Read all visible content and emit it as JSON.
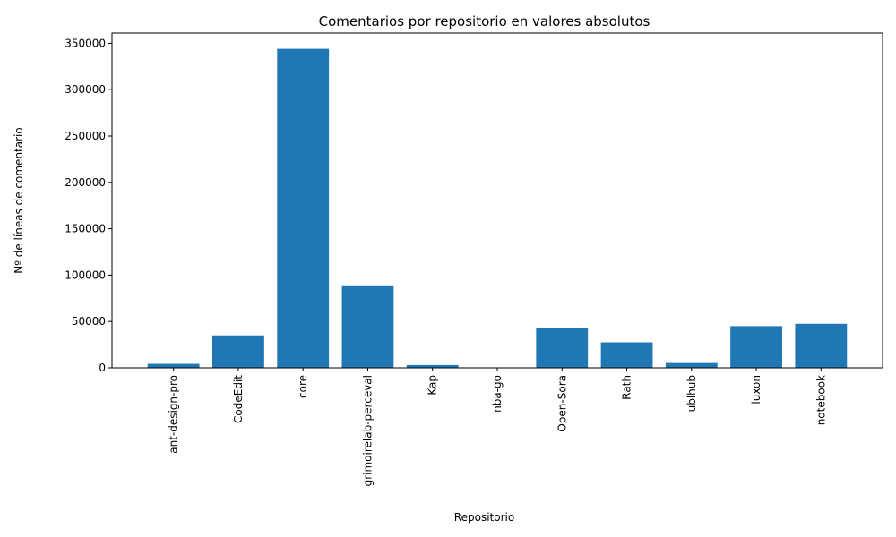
{
  "chart_data": {
    "type": "bar",
    "title": "Comentarios por repositorio en valores absolutos",
    "xlabel": "Repositorio",
    "ylabel": "Nº de líneas de comentario",
    "categories": [
      "ant-design-pro",
      "CodeEdit",
      "core",
      "grimoirelab-perceval",
      "Kap",
      "nba-go",
      "Open-Sora",
      "Rath",
      "ublhub",
      "luxon",
      "notebook"
    ],
    "values": [
      4300,
      35000,
      344000,
      89000,
      3000,
      200,
      43000,
      27500,
      5200,
      45000,
      47500
    ],
    "yticks": [
      0,
      50000,
      100000,
      150000,
      200000,
      250000,
      300000,
      350000
    ],
    "ylim": [
      0,
      361000
    ],
    "grid": false,
    "bar_color": "#1f77b4"
  }
}
